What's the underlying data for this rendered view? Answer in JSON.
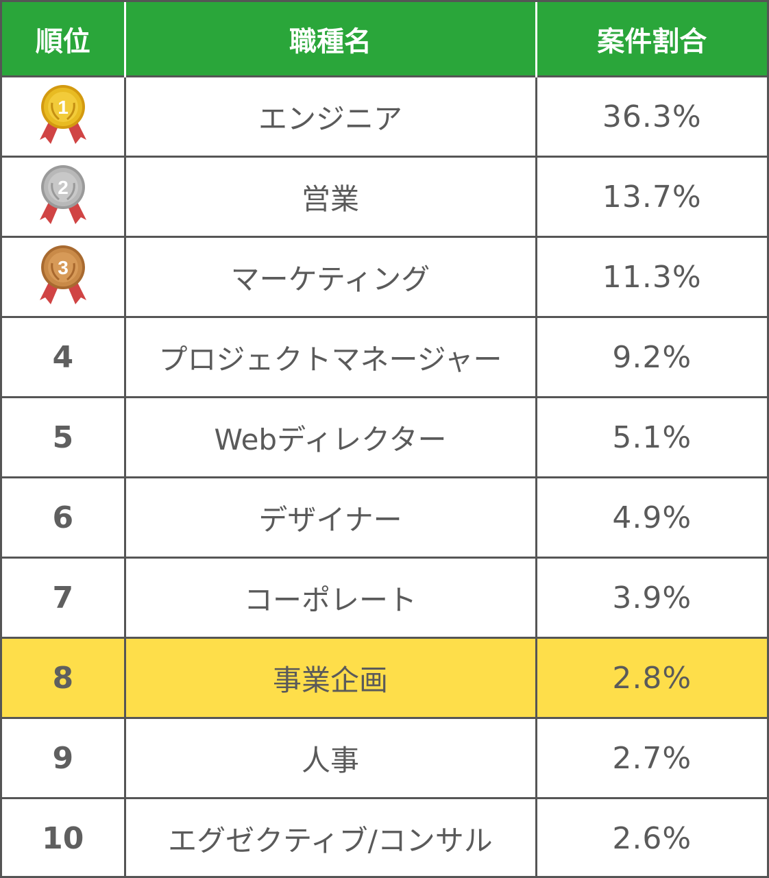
{
  "chart_data": {
    "type": "table",
    "columns": [
      "順位",
      "職種名",
      "案件割合"
    ],
    "rows": [
      {
        "rank": "1",
        "name": "エンジニア",
        "share": "36.3%",
        "medal": "gold-medal-icon"
      },
      {
        "rank": "2",
        "name": "営業",
        "share": "13.7%",
        "medal": "silver-medal-icon"
      },
      {
        "rank": "3",
        "name": "マーケティング",
        "share": "11.3%",
        "medal": "bronze-medal-icon"
      },
      {
        "rank": "4",
        "name": "プロジェクトマネージャー",
        "share": "9.2%"
      },
      {
        "rank": "5",
        "name": "Webディレクター",
        "share": "5.1%"
      },
      {
        "rank": "6",
        "name": "デザイナー",
        "share": "4.9%"
      },
      {
        "rank": "7",
        "name": "コーポレート",
        "share": "3.9%"
      },
      {
        "rank": "8",
        "name": "事業企画",
        "share": "2.8%",
        "highlighted": true
      },
      {
        "rank": "9",
        "name": "人事",
        "share": "2.7%"
      },
      {
        "rank": "10",
        "name": "エグゼクティブ/コンサル",
        "share": "2.6%"
      }
    ]
  },
  "colors": {
    "header_bg": "#2aa63a",
    "highlight_bg": "#fede4a",
    "border": "#555555",
    "gold": "#e2b21b",
    "silver": "#b5b5b5",
    "bronze": "#c98a48",
    "ribbon": "#d04444"
  }
}
